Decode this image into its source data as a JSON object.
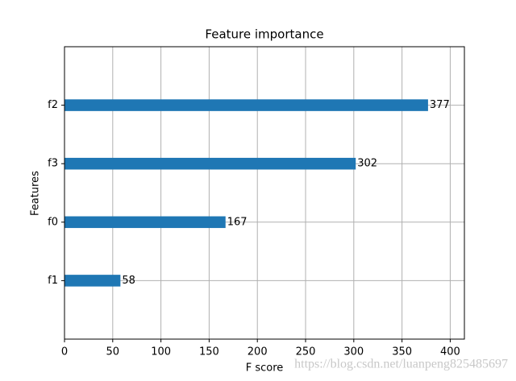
{
  "chart_data": {
    "type": "barh",
    "title": "Feature importance",
    "x_label": "F score",
    "y_label": "Features",
    "categories": [
      "f2",
      "f3",
      "f0",
      "f1"
    ],
    "values": [
      377,
      302,
      167,
      58
    ],
    "color": "#1f77b4",
    "xlim": [
      0,
      414.7
    ],
    "xticks": [
      0,
      50,
      100,
      150,
      200,
      250,
      300,
      350,
      400
    ],
    "grid": true,
    "watermark": "https://blog.csdn.net/luanpeng825485697"
  }
}
